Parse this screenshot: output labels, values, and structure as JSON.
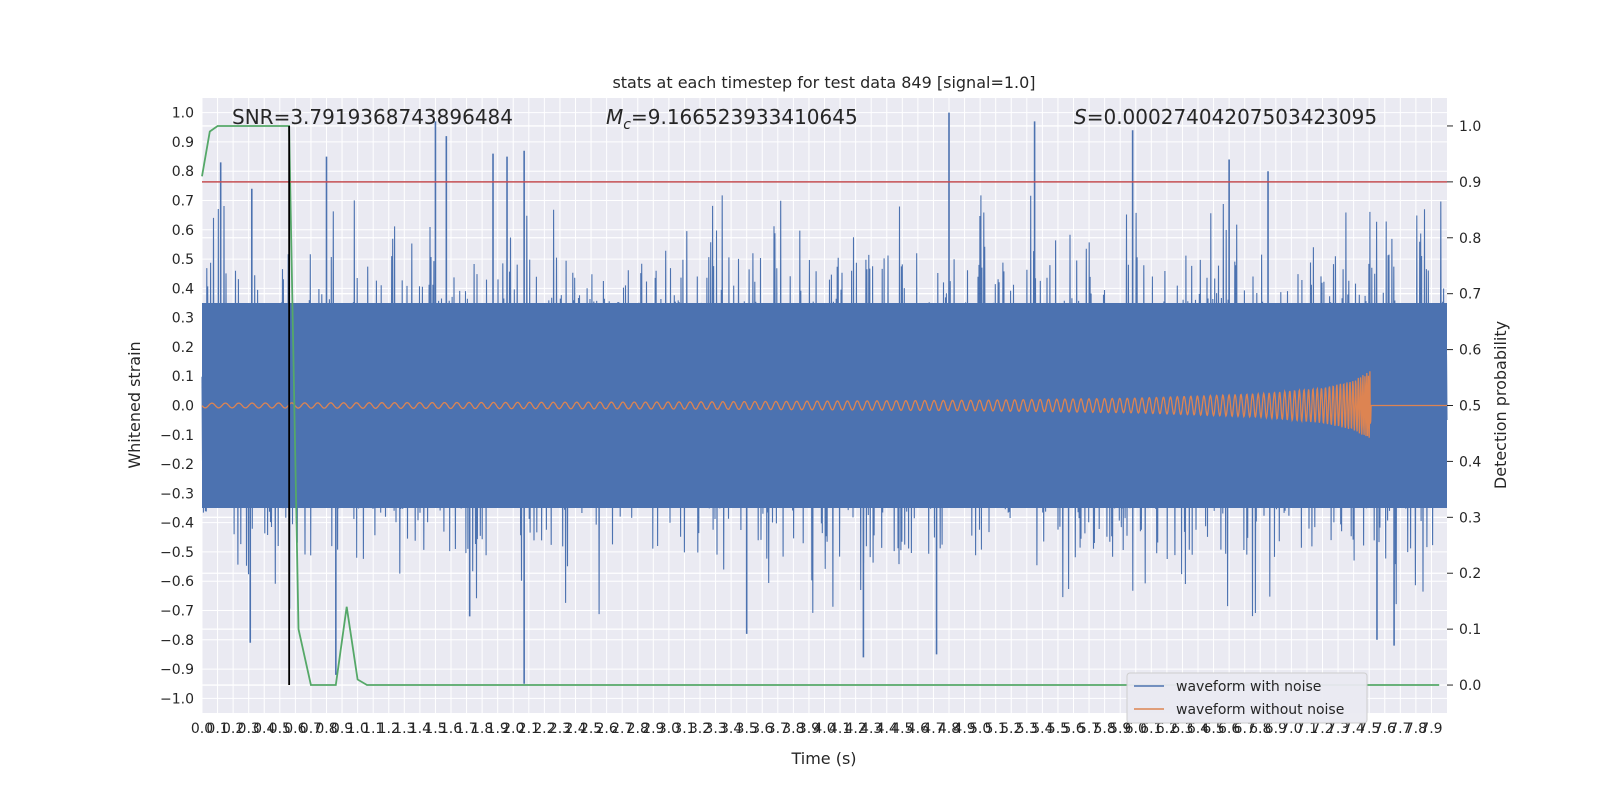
{
  "chart_data": {
    "type": "line",
    "title": "stats at each timestep for test data 849 [signal=1.0]",
    "xlabel": "Time (s)",
    "ylabel": "Whitened strain",
    "y2label": "Detection probability",
    "xlim": [
      0.0,
      8.0
    ],
    "ylim": [
      -1.05,
      1.05
    ],
    "y2lim": [
      -0.05,
      1.05
    ],
    "x_ticks": [
      0.0,
      0.1,
      0.2,
      0.3,
      0.4,
      0.5,
      0.6,
      0.7,
      0.8,
      0.9,
      1.0,
      1.1,
      1.2,
      1.3,
      1.4,
      1.5,
      1.6,
      1.7,
      1.8,
      1.9,
      2.0,
      2.1,
      2.2,
      2.3,
      2.4,
      2.5,
      2.6,
      2.7,
      2.8,
      2.9,
      3.0,
      3.1,
      3.2,
      3.3,
      3.4,
      3.5,
      3.6,
      3.7,
      3.8,
      3.9,
      4.0,
      4.1,
      4.2,
      4.3,
      4.4,
      4.5,
      4.6,
      4.7,
      4.8,
      4.9,
      5.0,
      5.1,
      5.2,
      5.3,
      5.4,
      5.5,
      5.6,
      5.7,
      5.8,
      5.9,
      6.0,
      6.1,
      6.2,
      6.3,
      6.4,
      6.5,
      6.6,
      6.7,
      6.8,
      6.9,
      7.0,
      7.1,
      7.2,
      7.3,
      7.4,
      7.5,
      7.6,
      7.7,
      7.8,
      7.9
    ],
    "y_ticks": [
      -1.0,
      -0.9,
      -0.8,
      -0.7,
      -0.6,
      -0.5,
      -0.4,
      -0.3,
      -0.2,
      -0.1,
      0.0,
      0.1,
      0.2,
      0.3,
      0.4,
      0.5,
      0.6,
      0.7,
      0.8,
      0.9,
      1.0
    ],
    "y2_ticks": [
      0.0,
      0.1,
      0.2,
      0.3,
      0.4,
      0.5,
      0.6,
      0.7,
      0.8,
      0.9,
      1.0
    ],
    "annotations": [
      {
        "label": "SNR",
        "value": "3.7919368743896484"
      },
      {
        "label": "M",
        "sub": "c",
        "value": "9.166523933410645"
      },
      {
        "label": "S",
        "value": "0.00027404207503423095"
      }
    ],
    "threshold": {
      "axis": "y2",
      "value": 0.9,
      "color": "#c44e52"
    },
    "detection_time": 0.56,
    "merger_time": 7.5,
    "legend": {
      "position": "lower-right"
    },
    "grid": true,
    "series": [
      {
        "name": "waveform with noise",
        "color": "#4c72b0",
        "axis": "y",
        "kind": "noise",
        "core_range": [
          -0.35,
          0.35
        ],
        "peaks": [
          [
            0.12,
            0.83
          ],
          [
            0.32,
            0.74
          ],
          [
            0.8,
            0.85
          ],
          [
            1.5,
            0.97
          ],
          [
            1.57,
            0.92
          ],
          [
            1.87,
            0.86
          ],
          [
            1.96,
            0.85
          ],
          [
            2.07,
            0.87
          ],
          [
            4.8,
            1.0
          ],
          [
            5.35,
            0.97
          ],
          [
            5.98,
            0.94
          ],
          [
            6.6,
            0.84
          ],
          [
            6.85,
            0.8
          ],
          [
            0.86,
            -0.92
          ],
          [
            2.07,
            -0.95
          ],
          [
            0.31,
            -0.81
          ],
          [
            4.25,
            -0.86
          ],
          [
            4.72,
            -0.85
          ],
          [
            7.55,
            -0.8
          ],
          [
            7.66,
            -0.82
          ],
          [
            3.5,
            -0.78
          ],
          [
            1.72,
            -0.72
          ]
        ]
      },
      {
        "name": "waveform without noise",
        "color": "#dd8452",
        "axis": "y",
        "kind": "chirp",
        "points": [
          [
            0.0,
            0.008
          ],
          [
            3.0,
            0.012
          ],
          [
            5.0,
            0.018
          ],
          [
            6.0,
            0.025
          ],
          [
            6.8,
            0.04
          ],
          [
            7.2,
            0.06
          ],
          [
            7.4,
            0.085
          ],
          [
            7.48,
            0.11
          ],
          [
            7.51,
            0.12
          ],
          [
            7.52,
            0.0
          ],
          [
            8.0,
            0.0
          ]
        ]
      },
      {
        "name": "",
        "color": "#55a868",
        "axis": "y2",
        "kind": "line",
        "points": [
          [
            0.0,
            0.91
          ],
          [
            0.05,
            0.99
          ],
          [
            0.1,
            1.0
          ],
          [
            0.56,
            1.0
          ],
          [
            0.62,
            0.1
          ],
          [
            0.7,
            0.0
          ],
          [
            0.8,
            0.0
          ],
          [
            0.86,
            0.0
          ],
          [
            0.93,
            0.14
          ],
          [
            1.0,
            0.01
          ],
          [
            1.06,
            0.0
          ],
          [
            7.95,
            0.0
          ]
        ]
      }
    ]
  }
}
